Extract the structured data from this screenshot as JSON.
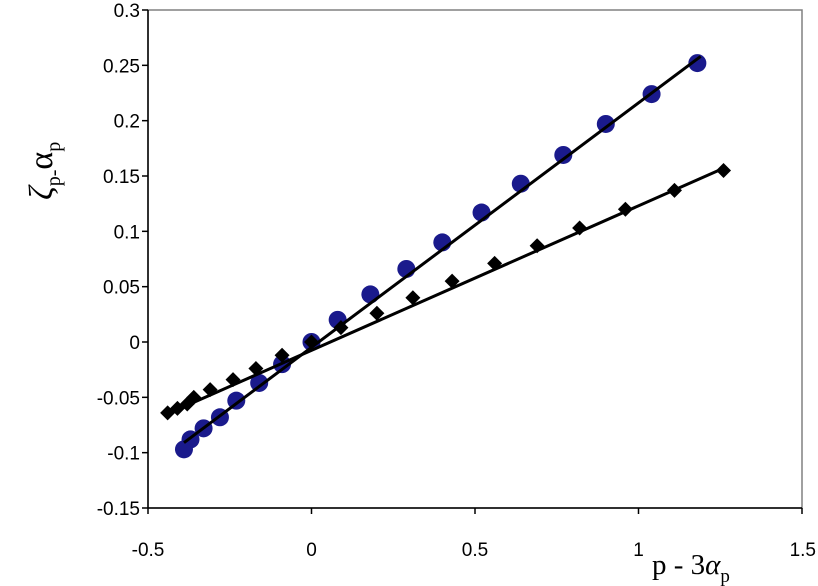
{
  "chart_data": {
    "type": "scatter",
    "title": "",
    "xlabel": {
      "base": "p - 3",
      "symbol": "α",
      "sub": "p"
    },
    "ylabel": {
      "symbol1": "ζ",
      "sub1": "p",
      "dash": "-",
      "symbol2": "α",
      "sub2": "p"
    },
    "xlim": [
      -0.5,
      1.5
    ],
    "ylim": [
      -0.15,
      0.3
    ],
    "xticks": [
      -0.5,
      0,
      0.5,
      1,
      1.5
    ],
    "xtick_labels": [
      "-0.5",
      "0",
      "0.5",
      "1",
      "1.5"
    ],
    "yticks": [
      -0.15,
      -0.1,
      -0.05,
      0,
      0.05,
      0.1,
      0.15,
      0.2,
      0.25,
      0.3
    ],
    "ytick_labels": [
      "-0.15",
      "-0.1",
      "-0.05",
      "0",
      "0.05",
      "0.1",
      "0.15",
      "0.2",
      "0.25",
      "0.3"
    ],
    "grid": false,
    "legend": "none",
    "series": [
      {
        "marker": "circle",
        "color": "#1a1a8c",
        "x": [
          -0.39,
          -0.37,
          -0.33,
          -0.28,
          -0.23,
          -0.16,
          -0.09,
          0.0,
          0.08,
          0.18,
          0.29,
          0.4,
          0.52,
          0.64,
          0.77,
          0.9,
          1.04,
          1.18
        ],
        "y": [
          -0.097,
          -0.088,
          -0.078,
          -0.068,
          -0.053,
          -0.037,
          -0.02,
          0.0,
          0.02,
          0.043,
          0.066,
          0.09,
          0.117,
          0.143,
          0.169,
          0.197,
          0.224,
          0.252
        ],
        "fit": {
          "x": [
            -0.39,
            1.19
          ],
          "y": [
            -0.091,
            0.258
          ]
        }
      },
      {
        "marker": "diamond",
        "color": "#000000",
        "x": [
          -0.44,
          -0.41,
          -0.38,
          -0.36,
          -0.31,
          -0.24,
          -0.17,
          -0.09,
          0.0,
          0.09,
          0.2,
          0.31,
          0.43,
          0.56,
          0.69,
          0.82,
          0.96,
          1.11,
          1.26
        ],
        "y": [
          -0.064,
          -0.06,
          -0.056,
          -0.05,
          -0.043,
          -0.034,
          -0.024,
          -0.012,
          0.0,
          0.013,
          0.026,
          0.04,
          0.055,
          0.071,
          0.087,
          0.103,
          0.12,
          0.137,
          0.155
        ],
        "fit": {
          "x": [
            -0.44,
            1.26
          ],
          "y": [
            -0.065,
            0.157
          ]
        }
      }
    ]
  }
}
